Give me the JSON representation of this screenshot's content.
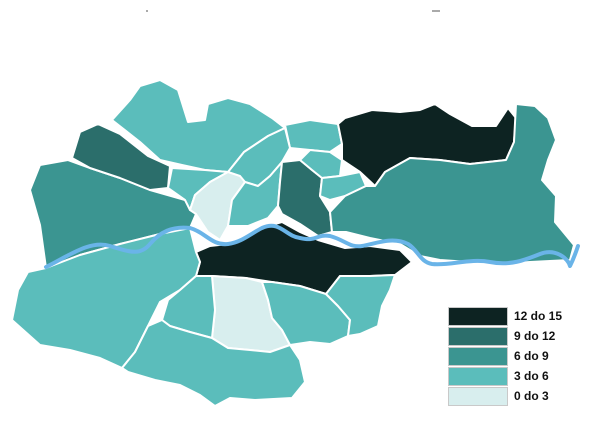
{
  "map": {
    "legend": [
      {
        "label": "12 do 15",
        "color": "#0d2322"
      },
      {
        "label": "9 do 12",
        "color": "#2b6e6b"
      },
      {
        "label": "6 do 9",
        "color": "#3b9591"
      },
      {
        "label": "3 do 6",
        "color": "#5bbdbb"
      },
      {
        "label": "0 do 3",
        "color": "#d8eeee"
      }
    ],
    "districts": [
      {
        "id": "district-west-large",
        "class": "6 do 9"
      },
      {
        "id": "district-northwest",
        "class": "9 do 12"
      },
      {
        "id": "district-north-center",
        "class": "3 do 6"
      },
      {
        "id": "district-north-center-small",
        "class": "3 do 6"
      },
      {
        "id": "district-north-top",
        "class": "3 do 6"
      },
      {
        "id": "district-old-town",
        "class": "0 do 3"
      },
      {
        "id": "district-center-left",
        "class": "3 do 6"
      },
      {
        "id": "district-center-north",
        "class": "3 do 6"
      },
      {
        "id": "district-center-east-dark",
        "class": "9 do 12"
      },
      {
        "id": "district-center-small-a",
        "class": "3 do 6"
      },
      {
        "id": "district-center-small-b",
        "class": "3 do 6"
      },
      {
        "id": "district-northeast-dark",
        "class": "12 do 15"
      },
      {
        "id": "district-east-large",
        "class": "6 do 9"
      },
      {
        "id": "district-south-center-dark",
        "class": "12 do 15"
      },
      {
        "id": "district-southwest-large",
        "class": "3 do 6"
      },
      {
        "id": "district-south-light",
        "class": "0 do 3"
      },
      {
        "id": "district-south-left",
        "class": "3 do 6"
      },
      {
        "id": "district-south-bottom",
        "class": "3 do 6"
      },
      {
        "id": "district-south-right",
        "class": "3 do 6"
      },
      {
        "id": "district-south-east",
        "class": "3 do 6"
      }
    ],
    "river_color": "#6ab4e8"
  }
}
